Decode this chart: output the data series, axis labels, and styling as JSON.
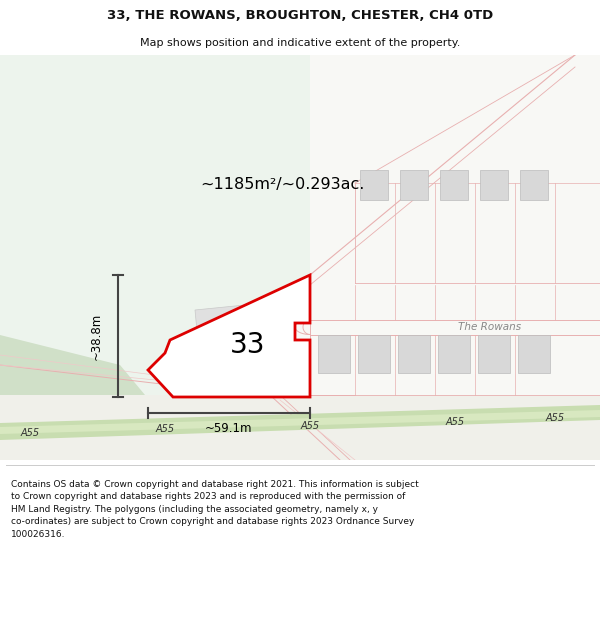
{
  "title": "33, THE ROWANS, BROUGHTON, CHESTER, CH4 0TD",
  "subtitle": "Map shows position and indicative extent of the property.",
  "area_text": "~1185m²/~0.293ac.",
  "dim_width": "~59.1m",
  "dim_height": "~38.8m",
  "label_33": "33",
  "road_label": "A55",
  "rowans_label": "The Rowans",
  "footer_line1": "Contains OS data © Crown copyright and database right 2021. This information is subject",
  "footer_line2": "to Crown copyright and database rights 2023 and is reproduced with the permission of",
  "footer_line3": "HM Land Registry. The polygons (including the associated geometry, namely x, y",
  "footer_line4": "co-ordinates) are subject to Crown copyright and database rights 2023 Ordnance Survey",
  "footer_line5": "100026316.",
  "bg_green": "#edf4ed",
  "bg_white": "#f8f8f5",
  "road_green_outer": "#c8ddb0",
  "road_green_inner": "#d8e8c0",
  "property_red": "#dd0000",
  "property_fill": "#ffffff",
  "building_fill": "#d8d8d8",
  "building_edge": "#bbbbbb",
  "pink": "#e8b0b0",
  "pink_light": "#f0c8c8",
  "dim_color": "#444444",
  "text_dark": "#111111",
  "text_grey": "#888888"
}
